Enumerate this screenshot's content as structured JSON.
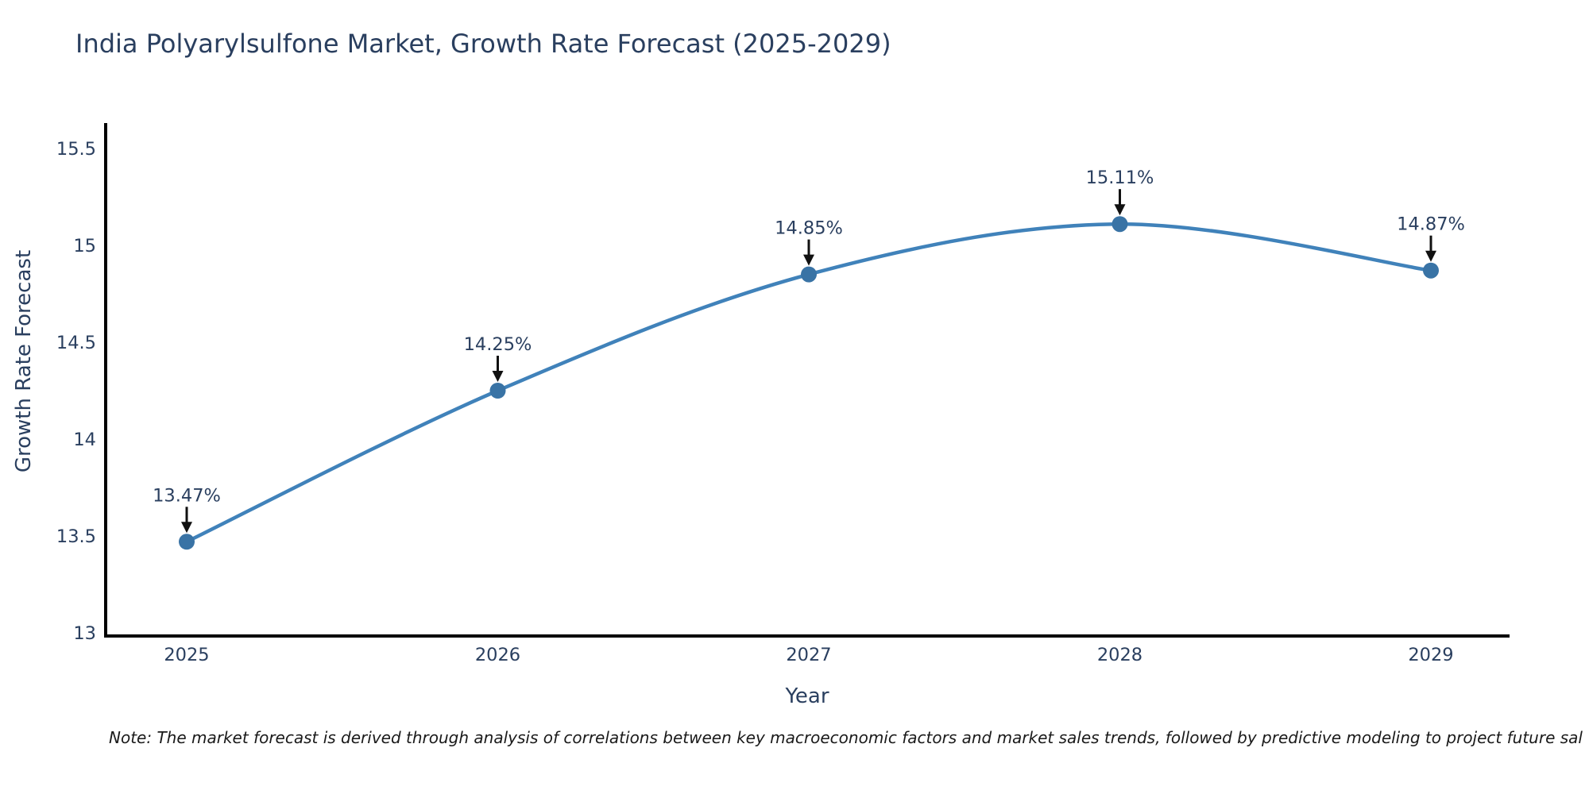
{
  "chart_data": {
    "type": "line",
    "line_shape": "spline",
    "title": "India Polyarylsulfone Market, Growth Rate Forecast (2025-2029)",
    "xlabel": "Year",
    "ylabel": "Growth Rate Forecast",
    "x": [
      "2025",
      "2026",
      "2027",
      "2028",
      "2029"
    ],
    "values": [
      13.47,
      14.25,
      14.85,
      15.11,
      14.87
    ],
    "point_labels": [
      "13.47%",
      "14.25%",
      "14.85%",
      "15.11%",
      "14.87%"
    ],
    "yticks": [
      13,
      13.5,
      14,
      14.5,
      15,
      15.5
    ],
    "ylim": [
      13,
      15.55
    ],
    "grid": false,
    "legend": "none",
    "note": "Note: The market forecast is derived through analysis of correlations between key macroeconomic factors and market sales trends, followed by predictive modeling to project future sal",
    "colors": {
      "line": "#4082BA",
      "marker": "#3973A5",
      "axis": "#000000",
      "text": "#2a3f5f",
      "arrow": "#111111",
      "background": "#ffffff"
    }
  }
}
